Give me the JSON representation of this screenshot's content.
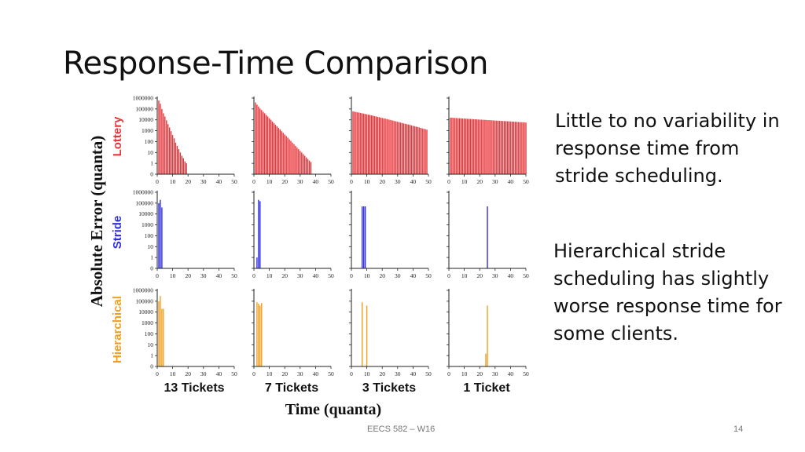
{
  "slide": {
    "title": "Response-Time Comparison",
    "note1": "Little to no variability in response time from stride scheduling.",
    "note2": "Hierarchical stride scheduling has slightly worse response time for some clients.",
    "footer_course": "EECS 582 – W16",
    "page_number": "14"
  },
  "chart_data": {
    "type": "bar",
    "ylabel": "Absolute Error (quanta)",
    "xlabel": "Time (quanta)",
    "x_ticks": [
      "0",
      "10",
      "20",
      "30",
      "40",
      "50"
    ],
    "xlim": [
      0,
      50
    ],
    "y_ticks": [
      "0",
      "1",
      "10",
      "100",
      "1000",
      "10000",
      "100000",
      "1000000"
    ],
    "y_scale": "log",
    "rows": [
      {
        "name": "Lottery",
        "color": "#e8353a"
      },
      {
        "name": "Stride",
        "color": "#2e2ee0"
      },
      {
        "name": "Hierarchical",
        "color": "#f0a020"
      }
    ],
    "columns": [
      "13 Tickets",
      "7 Tickets",
      "3 Tickets",
      "1 Ticket"
    ],
    "panels": [
      [
        {
          "x": [
            1,
            2,
            3,
            4,
            5,
            6,
            7,
            8,
            9,
            10,
            11,
            12,
            13,
            14,
            15,
            16,
            17,
            18,
            19
          ],
          "y": [
            600000,
            300000,
            100000,
            40000,
            20000,
            9000,
            4000,
            2000,
            900,
            400,
            200,
            80,
            40,
            20,
            10,
            5,
            3,
            1.5,
            1
          ]
        },
        {
          "x": [
            1,
            2,
            3,
            4,
            5,
            6,
            7,
            8,
            9,
            10,
            11,
            12,
            13,
            14,
            15,
            16,
            17,
            18,
            19,
            20,
            21,
            22,
            23,
            24,
            25,
            26,
            27,
            28,
            29,
            30,
            31,
            32,
            33,
            34,
            35,
            36,
            37
          ],
          "y": [
            400000,
            250000,
            170000,
            110000,
            80000,
            55000,
            40000,
            28000,
            20000,
            14000,
            10000,
            7000,
            5000,
            3500,
            2500,
            1800,
            1300,
            900,
            650,
            450,
            320,
            230,
            160,
            115,
            80,
            57,
            40,
            28,
            20,
            14,
            10,
            7,
            5,
            3.5,
            2.5,
            1.8,
            1.3
          ]
        },
        {
          "x": [
            1,
            2,
            3,
            4,
            5,
            6,
            7,
            8,
            9,
            10,
            11,
            12,
            13,
            14,
            15,
            16,
            17,
            18,
            19,
            20,
            21,
            22,
            23,
            24,
            25,
            26,
            27,
            28,
            29,
            30,
            31,
            32,
            33,
            34,
            35,
            36,
            37,
            38,
            39,
            40,
            41,
            42,
            43,
            44,
            45,
            46,
            47,
            48,
            49
          ],
          "y": [
            60000,
            56000,
            52000,
            49000,
            46000,
            43000,
            40000,
            37000,
            35000,
            32000,
            30000,
            28000,
            26000,
            24000,
            22000,
            20500,
            19000,
            17500,
            16000,
            15000,
            13800,
            12800,
            11800,
            10900,
            10000,
            9200,
            8500,
            7800,
            7200,
            6600,
            6100,
            5600,
            5100,
            4700,
            4300,
            4000,
            3700,
            3400,
            3100,
            2800,
            2600,
            2400,
            2200,
            2000,
            1800,
            1650,
            1500,
            1380,
            1250
          ]
        },
        {
          "x": [
            1,
            2,
            3,
            4,
            5,
            6,
            7,
            8,
            9,
            10,
            11,
            12,
            13,
            14,
            15,
            16,
            17,
            18,
            19,
            20,
            21,
            22,
            23,
            24,
            25,
            26,
            27,
            28,
            29,
            30,
            31,
            32,
            33,
            34,
            35,
            36,
            37,
            38,
            39,
            40,
            41,
            42,
            43,
            44,
            45,
            46,
            47,
            48,
            49,
            50
          ],
          "y": [
            16000,
            15600,
            15200,
            14900,
            14600,
            14300,
            14000,
            13700,
            13400,
            13100,
            12800,
            12500,
            12300,
            12000,
            11800,
            11500,
            11300,
            11000,
            10800,
            10600,
            10400,
            10200,
            10000,
            9800,
            9600,
            9400,
            9200,
            9000,
            8800,
            8600,
            8450,
            8300,
            8150,
            8000,
            7850,
            7700,
            7550,
            7400,
            7250,
            7100,
            6950,
            6800,
            6650,
            6500,
            6350,
            6200,
            6050,
            5900,
            5750,
            5600
          ]
        }
      ],
      [
        {
          "x": [
            1,
            2,
            3
          ],
          "y": [
            100000,
            200000,
            40000
          ]
        },
        {
          "x": [
            2,
            3,
            4
          ],
          "y": [
            1,
            200000,
            150000
          ]
        },
        {
          "x": [
            7,
            8,
            9
          ],
          "y": [
            50000,
            50000,
            50000
          ]
        },
        {
          "x": [
            25
          ],
          "y": [
            50000
          ]
        }
      ],
      [
        {
          "x": [
            1,
            2,
            3,
            4
          ],
          "y": [
            100000,
            300000,
            20000,
            20000
          ]
        },
        {
          "x": [
            2,
            3,
            4,
            5
          ],
          "y": [
            80000,
            60000,
            40000,
            70000
          ]
        },
        {
          "x": [
            7,
            10
          ],
          "y": [
            80000,
            40000
          ]
        },
        {
          "x": [
            24,
            25
          ],
          "y": [
            1.5,
            40000
          ]
        }
      ]
    ]
  }
}
